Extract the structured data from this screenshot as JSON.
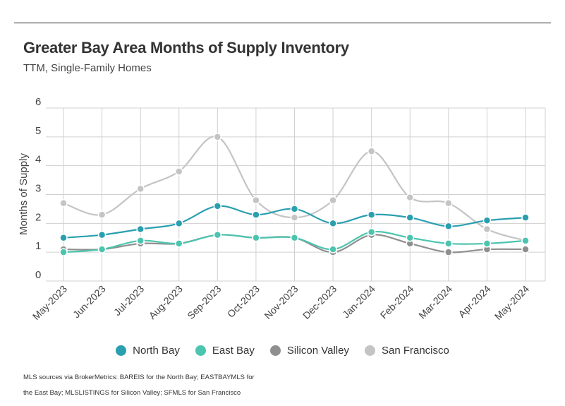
{
  "header": {
    "title": "Greater Bay Area Months of Supply Inventory",
    "subtitle": "TTM, Single-Family Homes"
  },
  "footer": {
    "source": "MLS sources via BrokerMetrics: BAREIS for the North Bay; EASTBAYMLS for the East Bay; MLSLISTINGS for Silicon Valley; SFMLS for San Francisco"
  },
  "chart_data": {
    "type": "line",
    "title": "Greater Bay Area Months of Supply Inventory",
    "subtitle": "TTM, Single-Family Homes",
    "xlabel": "",
    "ylabel": "Months of Supply",
    "ylim": [
      0,
      6
    ],
    "yticks": [
      "0",
      "1",
      "2",
      "3",
      "4",
      "5",
      "6"
    ],
    "grid": true,
    "legend_position": "bottom",
    "categories": [
      "May-2023",
      "Jun-2023",
      "Jul-2023",
      "Aug-2023",
      "Sep-2023",
      "Oct-2023",
      "Nov-2023",
      "Dec-2023",
      "Jan-2024",
      "Feb-2024",
      "Mar-2024",
      "Apr-2024",
      "May-2024"
    ],
    "series": [
      {
        "name": "North Bay",
        "color": "#2a9fb0",
        "values": [
          1.5,
          1.6,
          1.8,
          2.0,
          2.6,
          2.3,
          2.5,
          2.0,
          2.3,
          2.2,
          1.9,
          2.1,
          2.2
        ]
      },
      {
        "name": "East Bay",
        "color": "#4cc4ae",
        "values": [
          1.0,
          1.1,
          1.4,
          1.3,
          1.6,
          1.5,
          1.5,
          1.1,
          1.7,
          1.5,
          1.3,
          1.3,
          1.4
        ]
      },
      {
        "name": "Silicon Valley",
        "color": "#8f8f8f",
        "values": [
          1.1,
          1.1,
          1.3,
          1.3,
          1.6,
          1.5,
          1.5,
          1.0,
          1.6,
          1.3,
          1.0,
          1.1,
          1.1
        ]
      },
      {
        "name": "San Francisco",
        "color": "#c4c4c4",
        "values": [
          2.7,
          2.3,
          3.2,
          3.8,
          5.0,
          2.8,
          2.2,
          2.8,
          4.5,
          2.9,
          2.7,
          1.8,
          1.4
        ]
      }
    ]
  }
}
